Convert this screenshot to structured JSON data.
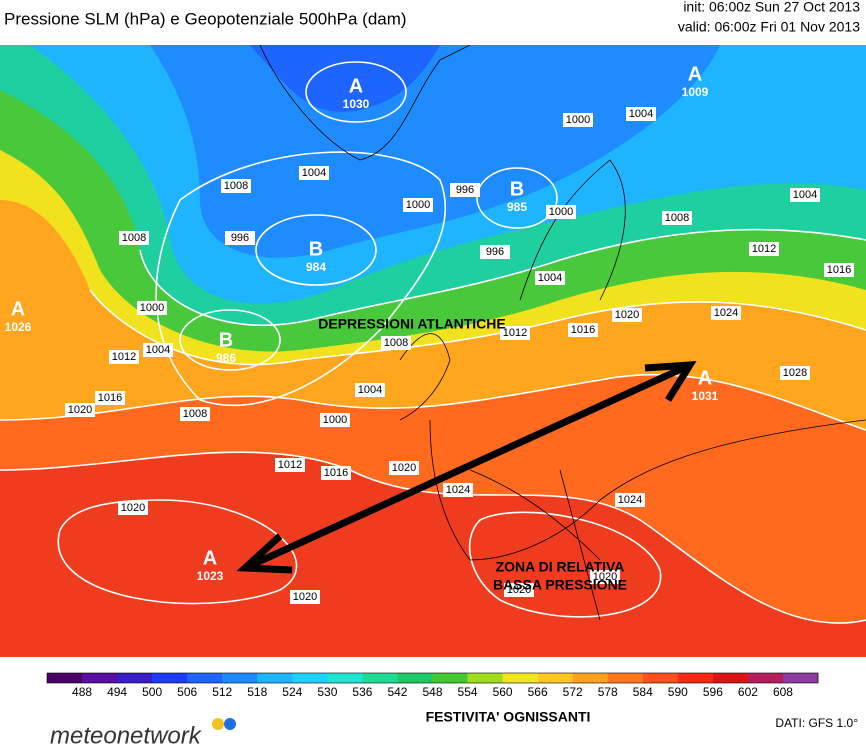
{
  "header": {
    "title": "Pressione SLM (hPa) e Geopotenziale 500hPa (dam)",
    "init": "init: 06:00z Sun 27 Oct 2013",
    "valid": "valid: 06:00z Fri 01 Nov 2013"
  },
  "map": {
    "centers": [
      {
        "letter": "A",
        "value": 1030
      },
      {
        "letter": "B",
        "value": 985
      },
      {
        "letter": "B",
        "value": 984
      },
      {
        "letter": "A",
        "value": 1026
      },
      {
        "letter": "B",
        "value": 986
      },
      {
        "letter": "A",
        "value": 1031
      },
      {
        "letter": "A",
        "value": 1023
      },
      {
        "letter": "A",
        "value": 1009
      }
    ],
    "isobar_labels": [
      1008,
      1004,
      1000,
      1004,
      996,
      1000,
      996,
      1008,
      996,
      1000,
      1008,
      1004,
      1012,
      1016,
      1004,
      1000,
      1004,
      1012,
      1016,
      1020,
      1008,
      1000,
      1004,
      1012,
      1016,
      1020,
      1024,
      1012,
      1016,
      1020,
      1024,
      1028,
      1020,
      1024,
      1020,
      1020,
      1020,
      1008
    ],
    "annotations": [
      "DEPRESSIONI ATLANTICHE",
      "ZONA DI RELATIVA",
      "BASSA PRESSIONE"
    ]
  },
  "colorbar": {
    "ticks": [
      488,
      494,
      500,
      506,
      512,
      518,
      524,
      530,
      536,
      542,
      548,
      554,
      560,
      566,
      572,
      578,
      584,
      590,
      596,
      602,
      608
    ],
    "colors": [
      "#4b0066",
      "#5a0fa0",
      "#3a1fc8",
      "#1e3cff",
      "#1e64ff",
      "#1e8cff",
      "#1eb4ff",
      "#1ed2ff",
      "#1ee6d2",
      "#1edc96",
      "#1ec864",
      "#46c832",
      "#a0dc1e",
      "#f0e61e",
      "#ffc81e",
      "#ffa01e",
      "#ff781e",
      "#ff501e",
      "#ff2814",
      "#dc1414",
      "#b41e5a",
      "#8c3ca0"
    ]
  },
  "footer": {
    "caption": "FESTIVITA' OGNISSANTI",
    "source": "DATI: GFS 1.0°",
    "brand": "meteonetwork"
  }
}
